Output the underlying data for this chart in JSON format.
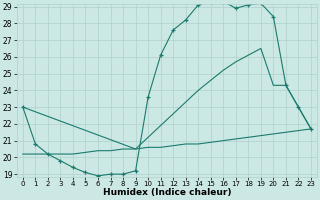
{
  "line1_x": [
    0,
    1,
    2,
    3,
    4,
    5,
    6,
    7,
    8,
    9,
    10,
    11,
    12,
    13,
    14,
    15,
    16,
    17,
    18,
    19,
    20,
    21,
    22,
    23
  ],
  "line1_y": [
    23.0,
    20.8,
    20.2,
    19.8,
    19.4,
    19.1,
    18.9,
    19.0,
    19.0,
    19.2,
    23.6,
    26.1,
    27.6,
    28.2,
    29.1,
    29.3,
    29.3,
    28.9,
    29.1,
    29.2,
    28.4,
    24.3,
    23.0,
    21.7
  ],
  "line2_x": [
    0,
    9,
    10,
    11,
    12,
    13,
    14,
    15,
    16,
    17,
    18,
    19,
    20,
    21,
    22,
    23
  ],
  "line2_y": [
    23.0,
    20.5,
    21.2,
    21.9,
    22.6,
    23.3,
    24.0,
    24.6,
    25.2,
    25.7,
    26.1,
    26.5,
    24.3,
    24.3,
    23.0,
    21.7
  ],
  "line3_x": [
    0,
    1,
    2,
    3,
    4,
    5,
    6,
    7,
    8,
    9,
    10,
    11,
    12,
    13,
    14,
    15,
    16,
    17,
    18,
    19,
    20,
    21,
    22,
    23
  ],
  "line3_y": [
    20.2,
    20.2,
    20.2,
    20.2,
    20.2,
    20.3,
    20.4,
    20.4,
    20.5,
    20.5,
    20.6,
    20.6,
    20.7,
    20.8,
    20.8,
    20.9,
    21.0,
    21.1,
    21.2,
    21.3,
    21.4,
    21.5,
    21.6,
    21.7
  ],
  "line_color": "#1a7a6e",
  "bg_color": "#cce8e4",
  "grid_color": "#b0d0cc",
  "xlabel": "Humidex (Indice chaleur)",
  "ylim": [
    19,
    29
  ],
  "xlim": [
    -0.5,
    23.5
  ],
  "yticks": [
    19,
    20,
    21,
    22,
    23,
    24,
    25,
    26,
    27,
    28,
    29
  ],
  "xticks": [
    0,
    1,
    2,
    3,
    4,
    5,
    6,
    7,
    8,
    9,
    10,
    11,
    12,
    13,
    14,
    15,
    16,
    17,
    18,
    19,
    20,
    21,
    22,
    23
  ]
}
